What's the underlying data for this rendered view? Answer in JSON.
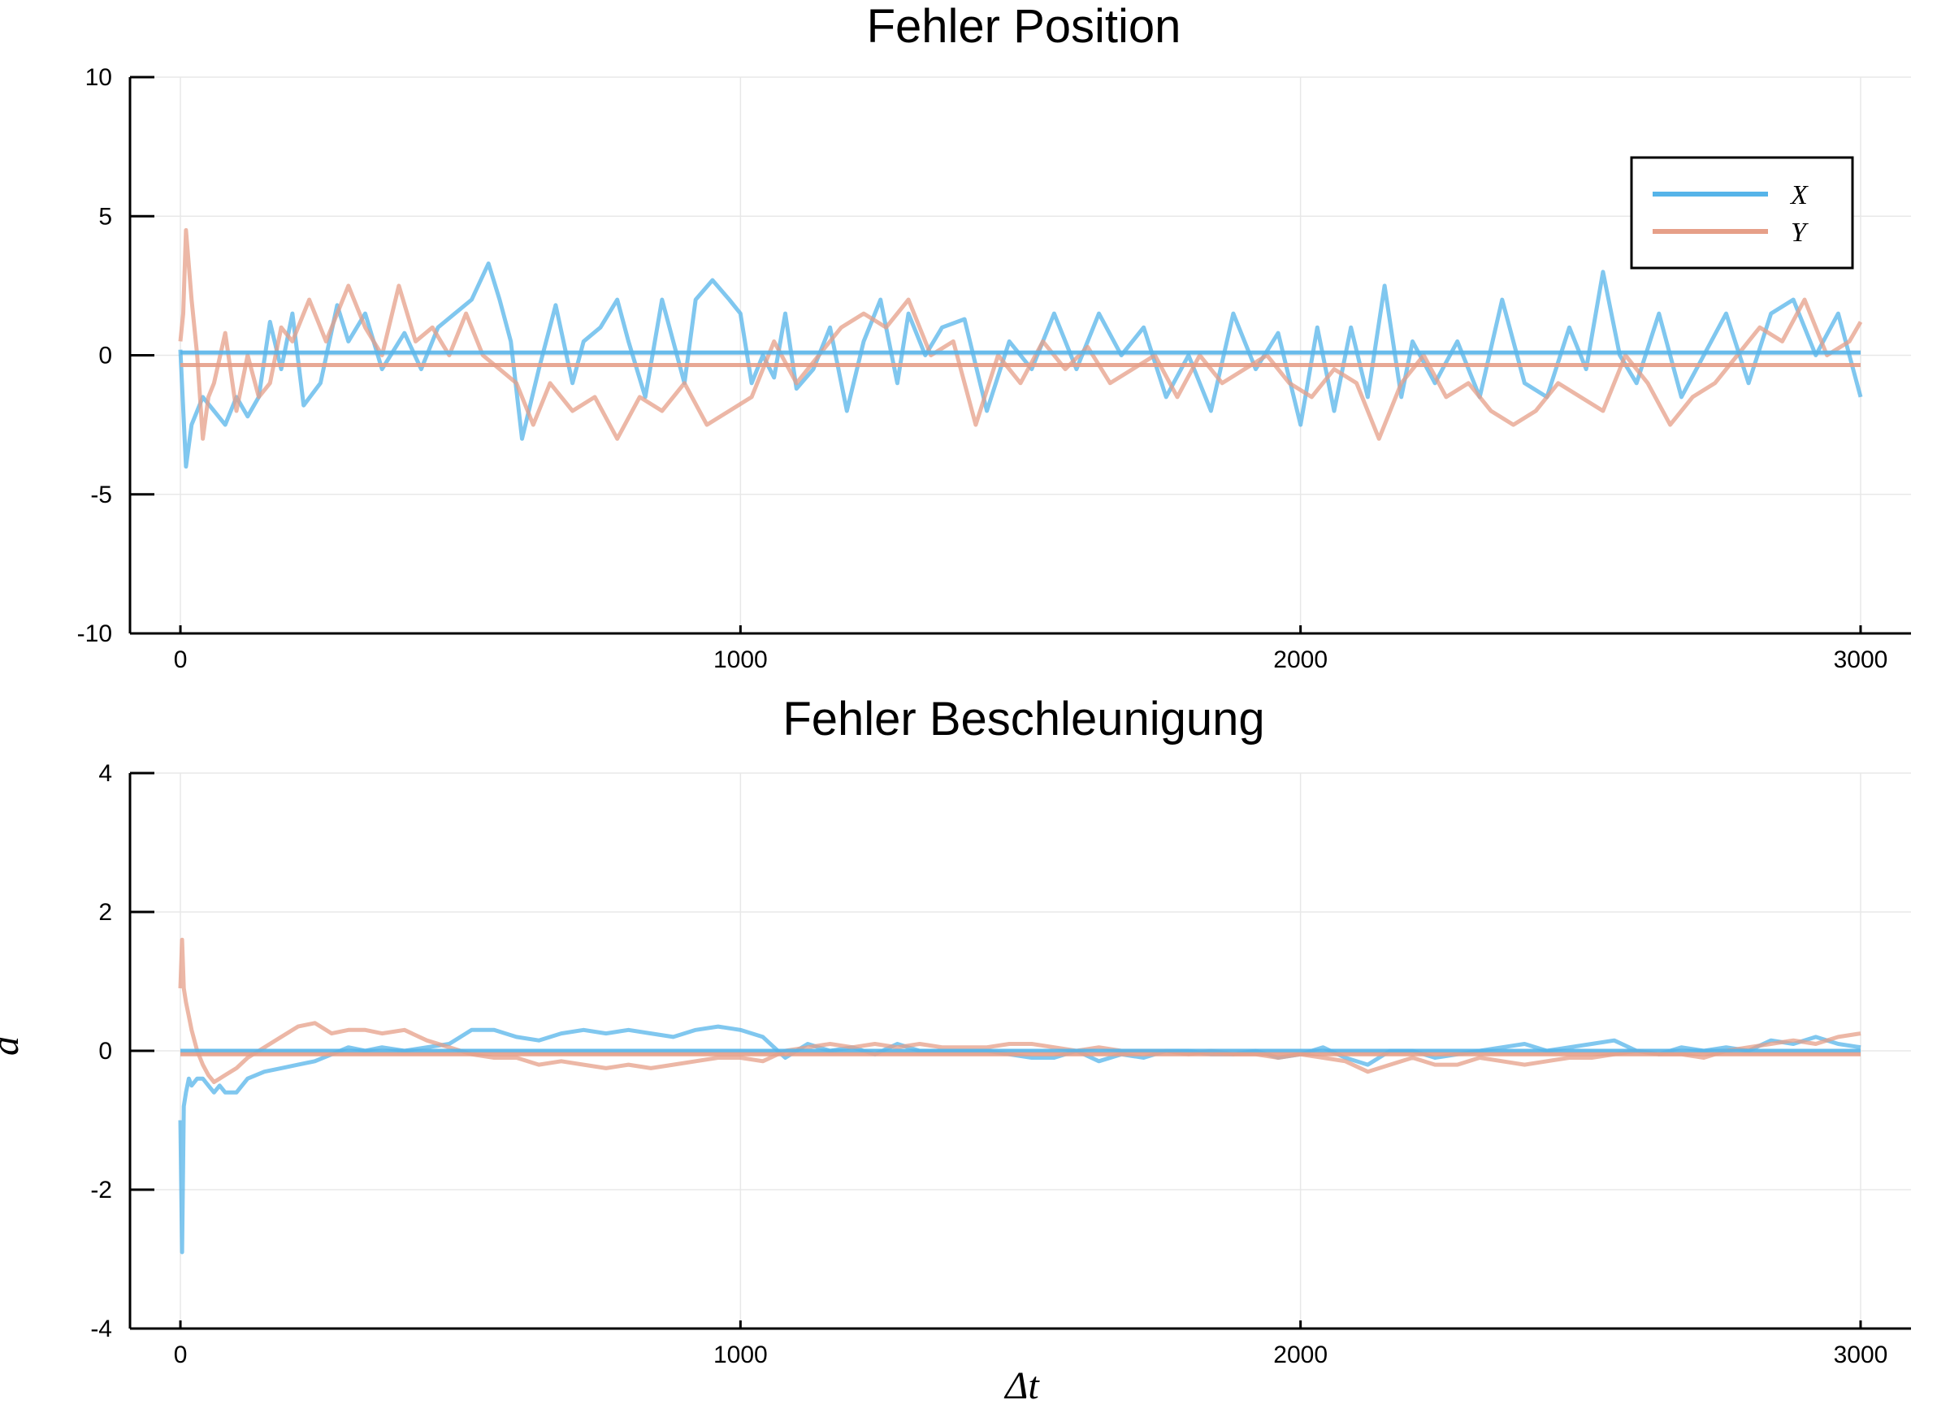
{
  "chart_data": [
    {
      "type": "line",
      "title": "Fehler Position",
      "xlabel": "",
      "ylabel": "",
      "xlim": [
        -90,
        3090
      ],
      "ylim": [
        -10,
        10
      ],
      "xticks": [
        0,
        1000,
        2000,
        3000
      ],
      "xtick_labels": [
        "0",
        "1000",
        "2000",
        "3000"
      ],
      "yticks": [
        -10,
        -5,
        0,
        5,
        10
      ],
      "ytick_labels": [
        "-10",
        "-5",
        "0",
        "5",
        "10"
      ],
      "grid": true,
      "legend": {
        "position": "top-right",
        "entries": [
          "X",
          "Y"
        ]
      },
      "series": [
        {
          "name": "X",
          "color": "#56b4e9",
          "mean": 0.1,
          "x": [
            0,
            10,
            20,
            40,
            60,
            80,
            100,
            120,
            140,
            160,
            180,
            200,
            220,
            250,
            280,
            300,
            330,
            360,
            400,
            430,
            460,
            490,
            520,
            550,
            570,
            590,
            610,
            640,
            670,
            700,
            720,
            750,
            780,
            800,
            830,
            860,
            880,
            900,
            920,
            950,
            980,
            1000,
            1020,
            1040,
            1060,
            1080,
            1100,
            1130,
            1160,
            1190,
            1220,
            1250,
            1280,
            1300,
            1330,
            1360,
            1400,
            1440,
            1480,
            1520,
            1560,
            1600,
            1640,
            1680,
            1720,
            1760,
            1800,
            1840,
            1880,
            1920,
            1960,
            2000,
            2030,
            2060,
            2090,
            2120,
            2150,
            2180,
            2200,
            2240,
            2280,
            2320,
            2360,
            2400,
            2440,
            2480,
            2510,
            2540,
            2570,
            2600,
            2640,
            2680,
            2720,
            2760,
            2800,
            2840,
            2880,
            2920,
            2960,
            3000
          ],
          "y": [
            0.2,
            -4.0,
            -2.5,
            -1.5,
            -2.0,
            -2.5,
            -1.5,
            -2.2,
            -1.5,
            1.2,
            -0.5,
            1.5,
            -1.8,
            -1.0,
            1.8,
            0.5,
            1.5,
            -0.5,
            0.8,
            -0.5,
            1.0,
            1.5,
            2.0,
            3.3,
            2.0,
            0.5,
            -3.0,
            -0.5,
            1.8,
            -1.0,
            0.5,
            1.0,
            2.0,
            0.5,
            -1.5,
            2.0,
            0.5,
            -1.0,
            2.0,
            2.7,
            2.0,
            1.5,
            -1.0,
            0.0,
            -0.8,
            1.5,
            -1.2,
            -0.5,
            1.0,
            -2.0,
            0.5,
            2.0,
            -1.0,
            1.5,
            0.0,
            1.0,
            1.3,
            -2.0,
            0.5,
            -0.5,
            1.5,
            -0.5,
            1.5,
            0.0,
            1.0,
            -1.5,
            0.0,
            -2.0,
            1.5,
            -0.5,
            0.8,
            -2.5,
            1.0,
            -2.0,
            1.0,
            -1.5,
            2.5,
            -1.5,
            0.5,
            -1.0,
            0.5,
            -1.5,
            2.0,
            -1.0,
            -1.5,
            1.0,
            -0.5,
            3.0,
            0.0,
            -1.0,
            1.5,
            -1.5,
            0.0,
            1.5,
            -1.0,
            1.5,
            2.0,
            0.0,
            1.5,
            -1.5
          ]
        },
        {
          "name": "Y",
          "color": "#e69f88",
          "mean": -0.35,
          "x": [
            0,
            5,
            10,
            20,
            30,
            40,
            50,
            60,
            80,
            100,
            120,
            140,
            160,
            180,
            200,
            230,
            260,
            280,
            300,
            330,
            360,
            390,
            420,
            450,
            480,
            510,
            540,
            570,
            600,
            630,
            660,
            700,
            740,
            780,
            820,
            860,
            900,
            940,
            980,
            1020,
            1060,
            1100,
            1140,
            1180,
            1220,
            1260,
            1300,
            1340,
            1380,
            1420,
            1460,
            1500,
            1540,
            1580,
            1620,
            1660,
            1700,
            1740,
            1780,
            1820,
            1860,
            1900,
            1940,
            1980,
            2020,
            2060,
            2100,
            2140,
            2180,
            2220,
            2260,
            2300,
            2340,
            2380,
            2420,
            2460,
            2500,
            2540,
            2580,
            2620,
            2660,
            2700,
            2740,
            2780,
            2820,
            2860,
            2900,
            2940,
            2980,
            3000
          ],
          "y": [
            0.5,
            1.5,
            4.5,
            2.0,
            0.0,
            -3.0,
            -1.5,
            -1.0,
            0.8,
            -2.0,
            0.0,
            -1.5,
            -1.0,
            1.0,
            0.5,
            2.0,
            0.5,
            1.5,
            2.5,
            1.0,
            0.0,
            2.5,
            0.5,
            1.0,
            0.0,
            1.5,
            0.0,
            -0.5,
            -1.0,
            -2.5,
            -1.0,
            -2.0,
            -1.5,
            -3.0,
            -1.5,
            -2.0,
            -1.0,
            -2.5,
            -2.0,
            -1.5,
            0.5,
            -1.0,
            0.0,
            1.0,
            1.5,
            1.0,
            2.0,
            0.0,
            0.5,
            -2.5,
            0.0,
            -1.0,
            0.5,
            -0.5,
            0.3,
            -1.0,
            -0.5,
            0.0,
            -1.5,
            0.0,
            -1.0,
            -0.5,
            0.0,
            -1.0,
            -1.5,
            -0.5,
            -1.0,
            -3.0,
            -1.0,
            0.0,
            -1.5,
            -1.0,
            -2.0,
            -2.5,
            -2.0,
            -1.0,
            -1.5,
            -2.0,
            0.0,
            -1.0,
            -2.5,
            -1.5,
            -1.0,
            0.0,
            1.0,
            0.5,
            2.0,
            0.0,
            0.5,
            1.2
          ]
        }
      ]
    },
    {
      "type": "line",
      "title": "Fehler Beschleunigung",
      "xlabel": "Δt",
      "ylabel": "a",
      "xlim": [
        -90,
        3090
      ],
      "ylim": [
        -4,
        4
      ],
      "xticks": [
        0,
        1000,
        2000,
        3000
      ],
      "xtick_labels": [
        "0",
        "1000",
        "2000",
        "3000"
      ],
      "yticks": [
        -4,
        -2,
        0,
        2,
        4
      ],
      "ytick_labels": [
        "-4",
        "-2",
        "0",
        "2",
        "4"
      ],
      "grid": true,
      "series": [
        {
          "name": "X",
          "color": "#56b4e9",
          "mean": 0.0,
          "x": [
            0,
            3,
            6,
            10,
            15,
            20,
            30,
            40,
            50,
            60,
            70,
            80,
            100,
            120,
            150,
            180,
            210,
            240,
            270,
            300,
            330,
            360,
            400,
            440,
            480,
            520,
            560,
            600,
            640,
            680,
            720,
            760,
            800,
            840,
            880,
            920,
            960,
            1000,
            1040,
            1080,
            1120,
            1160,
            1200,
            1240,
            1280,
            1320,
            1360,
            1400,
            1440,
            1480,
            1520,
            1560,
            1600,
            1640,
            1680,
            1720,
            1760,
            1800,
            1840,
            1880,
            1920,
            1960,
            2000,
            2040,
            2080,
            2120,
            2160,
            2200,
            2240,
            2280,
            2320,
            2360,
            2400,
            2440,
            2480,
            2520,
            2560,
            2600,
            2640,
            2680,
            2720,
            2760,
            2800,
            2840,
            2880,
            2920,
            2960,
            3000
          ],
          "y": [
            -1.0,
            -2.9,
            -0.8,
            -0.6,
            -0.4,
            -0.5,
            -0.4,
            -0.4,
            -0.5,
            -0.6,
            -0.5,
            -0.6,
            -0.6,
            -0.4,
            -0.3,
            -0.25,
            -0.2,
            -0.15,
            -0.05,
            0.05,
            0.0,
            0.05,
            0.0,
            0.05,
            0.1,
            0.3,
            0.3,
            0.2,
            0.15,
            0.25,
            0.3,
            0.25,
            0.3,
            0.25,
            0.2,
            0.3,
            0.35,
            0.3,
            0.2,
            -0.1,
            0.1,
            0.0,
            0.05,
            -0.05,
            0.1,
            0.0,
            0.0,
            0.0,
            0.0,
            -0.05,
            -0.1,
            -0.1,
            0.0,
            -0.15,
            -0.05,
            -0.1,
            0.0,
            0.0,
            -0.05,
            -0.05,
            0.0,
            -0.1,
            -0.05,
            0.05,
            -0.1,
            -0.2,
            0.0,
            0.0,
            -0.1,
            -0.05,
            0.0,
            0.05,
            0.1,
            0.0,
            0.05,
            0.1,
            0.15,
            0.0,
            -0.05,
            0.05,
            0.0,
            0.05,
            0.0,
            0.15,
            0.1,
            0.2,
            0.1,
            0.05
          ]
        },
        {
          "name": "Y",
          "color": "#e69f88",
          "mean": -0.05,
          "x": [
            0,
            3,
            6,
            10,
            15,
            20,
            30,
            40,
            50,
            60,
            70,
            80,
            100,
            120,
            150,
            180,
            210,
            240,
            270,
            300,
            330,
            360,
            400,
            440,
            480,
            520,
            560,
            600,
            640,
            680,
            720,
            760,
            800,
            840,
            880,
            920,
            960,
            1000,
            1040,
            1080,
            1120,
            1160,
            1200,
            1240,
            1280,
            1320,
            1360,
            1400,
            1440,
            1480,
            1520,
            1560,
            1600,
            1640,
            1680,
            1720,
            1760,
            1800,
            1840,
            1880,
            1920,
            1960,
            2000,
            2040,
            2080,
            2120,
            2160,
            2200,
            2240,
            2280,
            2320,
            2360,
            2400,
            2440,
            2480,
            2520,
            2560,
            2600,
            2640,
            2680,
            2720,
            2760,
            2800,
            2840,
            2880,
            2920,
            2960,
            3000
          ],
          "y": [
            0.9,
            1.6,
            0.9,
            0.7,
            0.5,
            0.3,
            0.0,
            -0.2,
            -0.35,
            -0.45,
            -0.4,
            -0.35,
            -0.25,
            -0.1,
            0.05,
            0.2,
            0.35,
            0.4,
            0.25,
            0.3,
            0.3,
            0.25,
            0.3,
            0.15,
            0.05,
            -0.05,
            -0.1,
            -0.1,
            -0.2,
            -0.15,
            -0.2,
            -0.25,
            -0.2,
            -0.25,
            -0.2,
            -0.15,
            -0.1,
            -0.1,
            -0.15,
            0.0,
            0.05,
            0.1,
            0.05,
            0.1,
            0.05,
            0.1,
            0.05,
            0.05,
            0.05,
            0.1,
            0.1,
            0.05,
            0.0,
            0.05,
            0.0,
            0.0,
            0.0,
            -0.05,
            0.0,
            -0.05,
            -0.05,
            -0.1,
            -0.05,
            -0.1,
            -0.15,
            -0.3,
            -0.2,
            -0.1,
            -0.2,
            -0.2,
            -0.1,
            -0.15,
            -0.2,
            -0.15,
            -0.1,
            -0.1,
            -0.05,
            0.0,
            -0.05,
            -0.05,
            -0.1,
            0.0,
            0.05,
            0.1,
            0.15,
            0.1,
            0.2,
            0.25
          ]
        }
      ]
    }
  ]
}
